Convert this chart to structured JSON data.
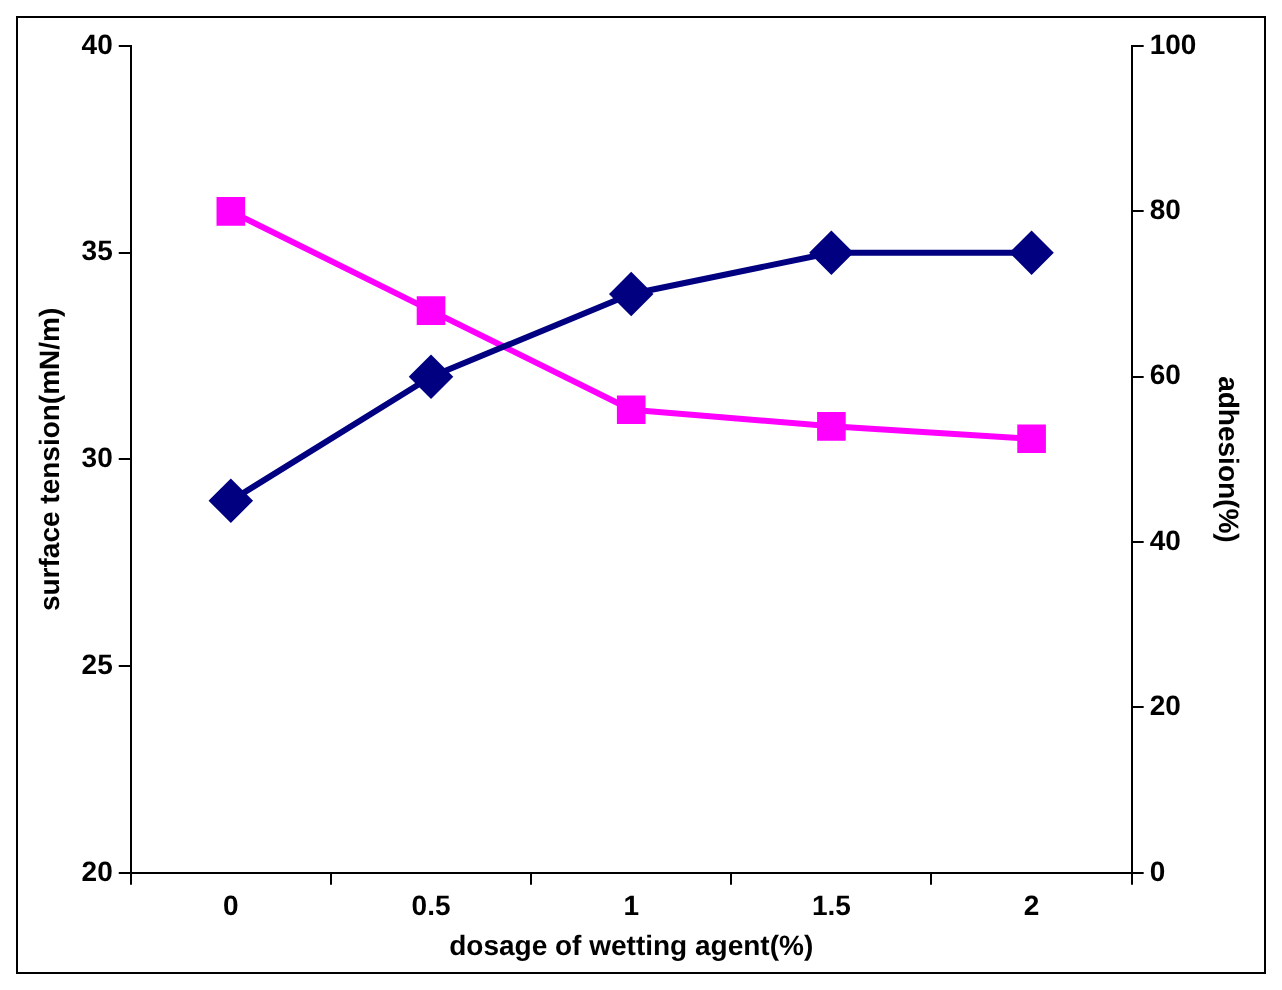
{
  "chart_data": {
    "type": "line",
    "xlabel": "dosage of wetting agent(%)",
    "ylabel": "surface tension(mN/m)",
    "y2label": "adhesion(%)",
    "categories": [
      "0",
      "0.5",
      "1",
      "1.5",
      "2"
    ],
    "series": [
      {
        "color": "#000080",
        "marker": "diamond",
        "values": [
          29,
          32,
          34,
          35,
          35
        ]
      },
      {
        "color": "#ff00ff",
        "marker": "square",
        "axis": "y2",
        "values": [
          80,
          68,
          56,
          54,
          52.5
        ]
      }
    ],
    "ylim": [
      20,
      40
    ],
    "yticks": [
      20,
      25,
      30,
      35,
      40
    ],
    "y2lim": [
      0,
      100
    ],
    "y2ticks": [
      0,
      20,
      40,
      60,
      80,
      100
    ],
    "grid": false,
    "legend": false
  }
}
